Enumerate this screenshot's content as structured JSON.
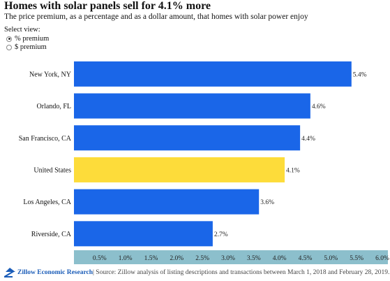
{
  "header": {
    "title": "Homes with solar panels sell for 4.1% more",
    "subtitle": "The price premium, as a percentage and as a dollar amount, that homes with solar power enjoy"
  },
  "controls": {
    "select_label": "Select view:",
    "options": [
      {
        "label": "% premium",
        "checked": true
      },
      {
        "label": "$ premium",
        "checked": false
      }
    ]
  },
  "chart_data": {
    "type": "bar",
    "orientation": "horizontal",
    "categories": [
      "New York, NY",
      "Orlando, FL",
      "San Francisco, CA",
      "United States",
      "Los Angeles, CA",
      "Riverside, CA"
    ],
    "values": [
      5.4,
      4.6,
      4.4,
      4.1,
      3.6,
      2.7
    ],
    "data_labels": [
      "5.4%",
      "4.6%",
      "4.4%",
      "4.1%",
      "3.6%",
      "2.7%"
    ],
    "colors": [
      "#1a66e8",
      "#1a66e8",
      "#1a66e8",
      "#fddc3a",
      "#1a66e8",
      "#1a66e8"
    ],
    "xlim": [
      0,
      6.0
    ],
    "xticks": [
      "0.5%",
      "1.0%",
      "1.5%",
      "2.0%",
      "2.5%",
      "3.0%",
      "3.5%",
      "4.0%",
      "4.5%",
      "5.0%",
      "5.5%",
      "6.0%"
    ],
    "axis_band_color": "#8cbfcc",
    "grid": false
  },
  "footer": {
    "logo_icon": "zillow-house-icon",
    "brand": "Zillow Economic Research",
    "source": " | Source: Zillow analysis of listing descriptions and transactions between March 1, 2018 and February 28, 2019."
  }
}
